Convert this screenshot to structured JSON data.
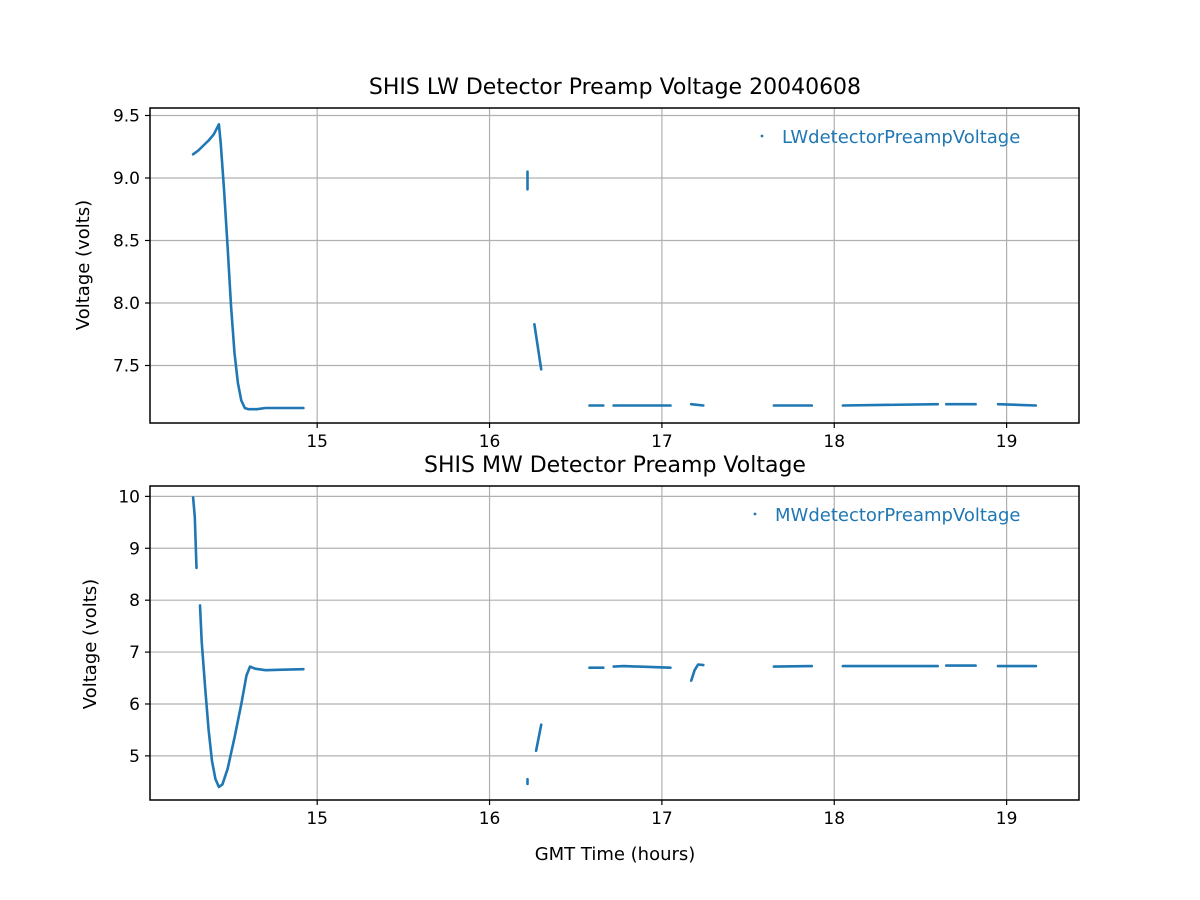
{
  "colors": {
    "series": "#1f77b4",
    "grid": "#b0b0b0",
    "axes": "#000000"
  },
  "chart_data": [
    {
      "type": "scatter",
      "title": "SHIS LW Detector Preamp Voltage 20040608",
      "xlabel": "",
      "ylabel": "Voltage (volts)",
      "xlim": [
        14.03,
        19.42
      ],
      "ylim": [
        7.04,
        9.56
      ],
      "xticks": [
        15,
        16,
        17,
        18,
        19
      ],
      "yticks": [
        7.5,
        8.0,
        8.5,
        9.0,
        9.5
      ],
      "xtick_labels": [
        "15",
        "16",
        "17",
        "18",
        "19"
      ],
      "ytick_labels": [
        "7.5",
        "8.0",
        "8.5",
        "9.0",
        "9.5"
      ],
      "grid": true,
      "legend": {
        "position": "top-right",
        "entries": [
          "LWdetectorPreampVoltage"
        ]
      },
      "series": [
        {
          "name": "LWdetectorPreampVoltage",
          "segments": [
            [
              [
                14.28,
                9.19
              ],
              [
                14.31,
                9.22
              ],
              [
                14.34,
                9.26
              ],
              [
                14.37,
                9.3
              ],
              [
                14.4,
                9.35
              ],
              [
                14.43,
                9.43
              ],
              [
                14.44,
                9.28
              ],
              [
                14.46,
                8.9
              ],
              [
                14.48,
                8.45
              ],
              [
                14.5,
                7.98
              ],
              [
                14.52,
                7.6
              ],
              [
                14.54,
                7.36
              ],
              [
                14.56,
                7.22
              ],
              [
                14.58,
                7.16
              ],
              [
                14.6,
                7.15
              ],
              [
                14.65,
                7.15
              ],
              [
                14.7,
                7.16
              ],
              [
                14.8,
                7.16
              ],
              [
                14.92,
                7.16
              ]
            ],
            [
              [
                16.22,
                9.05
              ],
              [
                16.22,
                8.91
              ]
            ],
            [
              [
                16.26,
                7.83
              ],
              [
                16.3,
                7.47
              ]
            ],
            [
              [
                16.58,
                7.18
              ],
              [
                16.66,
                7.18
              ]
            ],
            [
              [
                16.72,
                7.18
              ],
              [
                17.05,
                7.18
              ]
            ],
            [
              [
                17.17,
                7.19
              ],
              [
                17.24,
                7.18
              ]
            ],
            [
              [
                17.65,
                7.18
              ],
              [
                17.87,
                7.18
              ]
            ],
            [
              [
                18.05,
                7.18
              ],
              [
                18.6,
                7.19
              ]
            ],
            [
              [
                18.65,
                7.19
              ],
              [
                18.82,
                7.19
              ]
            ],
            [
              [
                18.95,
                7.19
              ],
              [
                19.17,
                7.18
              ]
            ]
          ]
        }
      ]
    },
    {
      "type": "scatter",
      "title": "SHIS MW Detector Preamp Voltage",
      "xlabel": "GMT Time (hours)",
      "ylabel": "Voltage (volts)",
      "xlim": [
        14.03,
        19.42
      ],
      "ylim": [
        4.15,
        10.2
      ],
      "xticks": [
        15,
        16,
        17,
        18,
        19
      ],
      "yticks": [
        5,
        6,
        7,
        8,
        9,
        10
      ],
      "xtick_labels": [
        "15",
        "16",
        "17",
        "18",
        "19"
      ],
      "ytick_labels": [
        "5",
        "6",
        "7",
        "8",
        "9",
        "10"
      ],
      "grid": true,
      "legend": {
        "position": "top-right",
        "entries": [
          "MWdetectorPreampVoltage"
        ]
      },
      "series": [
        {
          "name": "MWdetectorPreampVoltage",
          "segments": [
            [
              [
                14.28,
                9.98
              ],
              [
                14.29,
                9.6
              ],
              [
                14.3,
                8.62
              ]
            ],
            [
              [
                14.32,
                7.9
              ],
              [
                14.33,
                7.2
              ],
              [
                14.35,
                6.3
              ],
              [
                14.37,
                5.5
              ],
              [
                14.39,
                4.9
              ],
              [
                14.41,
                4.55
              ],
              [
                14.43,
                4.4
              ],
              [
                14.45,
                4.45
              ],
              [
                14.48,
                4.75
              ],
              [
                14.52,
                5.35
              ],
              [
                14.56,
                6.0
              ],
              [
                14.59,
                6.55
              ],
              [
                14.61,
                6.72
              ],
              [
                14.64,
                6.68
              ],
              [
                14.7,
                6.65
              ],
              [
                14.8,
                6.66
              ],
              [
                14.92,
                6.67
              ]
            ],
            [
              [
                16.22,
                4.55
              ],
              [
                16.22,
                4.46
              ]
            ],
            [
              [
                16.27,
                5.1
              ],
              [
                16.3,
                5.6
              ]
            ],
            [
              [
                16.58,
                6.7
              ],
              [
                16.66,
                6.7
              ]
            ],
            [
              [
                16.72,
                6.72
              ],
              [
                16.78,
                6.73
              ],
              [
                17.05,
                6.7
              ]
            ],
            [
              [
                17.17,
                6.45
              ],
              [
                17.19,
                6.65
              ],
              [
                17.21,
                6.76
              ],
              [
                17.24,
                6.75
              ]
            ],
            [
              [
                17.65,
                6.72
              ],
              [
                17.87,
                6.73
              ]
            ],
            [
              [
                18.05,
                6.73
              ],
              [
                18.6,
                6.73
              ]
            ],
            [
              [
                18.65,
                6.74
              ],
              [
                18.82,
                6.74
              ]
            ],
            [
              [
                18.95,
                6.73
              ],
              [
                19.17,
                6.73
              ]
            ]
          ]
        }
      ]
    }
  ]
}
